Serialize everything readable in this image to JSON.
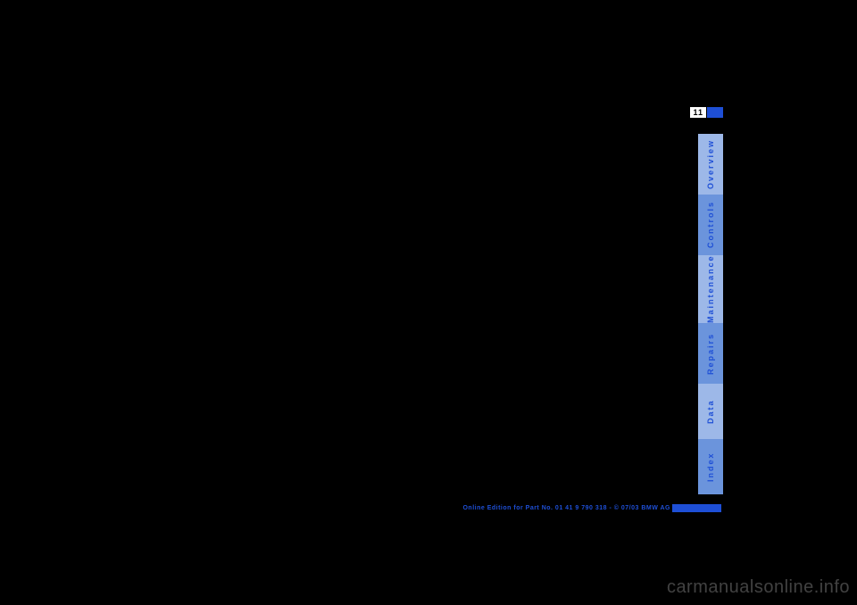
{
  "page": {
    "number": "11"
  },
  "tabs": {
    "overview": "Overview",
    "controls": "Controls",
    "maintenance": "Maintenance",
    "repairs": "Repairs",
    "data": "Data",
    "index": "Index"
  },
  "footer": {
    "text": "Online Edition for Part No. 01 41 9 790 318 - © 07/03 BMW AG"
  },
  "watermark": {
    "text": "carmanualsonline.info"
  },
  "colors": {
    "background": "#000000",
    "accent": "#1e4fd6",
    "tab_light": "#9db8e8",
    "tab_dark": "#6b94dc",
    "tab_text": "#1e4fd6",
    "watermark": "#e8e8e8"
  }
}
